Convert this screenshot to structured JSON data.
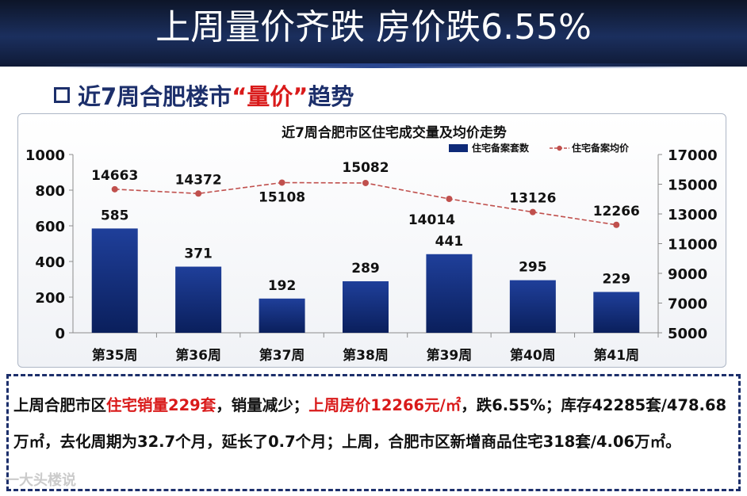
{
  "banner": {
    "title": "上周量价齐跌 房价跌6.55%"
  },
  "section": {
    "prefix": "近7周合肥楼市",
    "highlight": "“量价”",
    "suffix": "趋势"
  },
  "chart_data": {
    "type": "bar+line",
    "title": "近7周合肥市区住宅成交量及均价走势",
    "categories": [
      "第35周",
      "第36周",
      "第37周",
      "第38周",
      "第39周",
      "第40周",
      "第41周"
    ],
    "series": [
      {
        "name": "住宅备案套数",
        "type": "bar",
        "axis": "left",
        "values": [
          585,
          371,
          192,
          289,
          441,
          295,
          229
        ]
      },
      {
        "name": "住宅备案均价",
        "type": "line",
        "axis": "right",
        "values": [
          14663,
          14372,
          15108,
          15082,
          14014,
          13126,
          12266
        ]
      }
    ],
    "left_axis": {
      "ylim": [
        0,
        1000
      ],
      "ticks": [
        0,
        200,
        400,
        600,
        800,
        1000
      ]
    },
    "right_axis": {
      "ylim": [
        5000,
        17000
      ],
      "ticks": [
        5000,
        7000,
        9000,
        11000,
        13000,
        15000,
        17000
      ]
    },
    "legend_position": "top-right",
    "colors": {
      "bar": "#0e2a78",
      "line": "#c0504d"
    }
  },
  "summary": {
    "s1": "上周合肥市区",
    "s2": "住宅销量229套",
    "s3": "，销量减少；",
    "s4": "上周房价12266元/㎡",
    "s5": "，跌6.55%；库存42285套/478.68万㎡，去化周期为32.7个月，延长了0.7个月；上周，合肥市区新增商品住宅318套/4.06万㎡。"
  },
  "watermark": "一大头楼说"
}
